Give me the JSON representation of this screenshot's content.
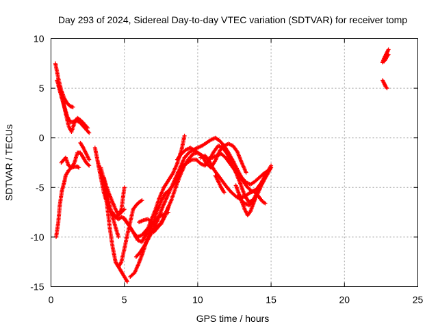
{
  "chart_data": {
    "type": "scatter",
    "title": "Day 293 of 2024, Sidereal Day-to-day VTEC variation (SDTVAR) for receiver tomp",
    "xlabel": "GPS time / hours",
    "ylabel": "SDTVAR / TECUs",
    "xlim": [
      0,
      25
    ],
    "ylim": [
      -15,
      10
    ],
    "xticks": [
      "0",
      "5",
      "10",
      "15",
      "20",
      "25"
    ],
    "yticks": [
      "10",
      "5",
      "0",
      "-5",
      "-10",
      "-15"
    ],
    "grid": true,
    "marker": "+",
    "color": "#ff0000",
    "series": [
      {
        "x": [
          0.3,
          0.5,
          0.7,
          0.9,
          1.1,
          1.3,
          1.5
        ],
        "y": [
          7.5,
          6.0,
          4.8,
          4.0,
          3.5,
          3.2,
          3.1
        ]
      },
      {
        "x": [
          0.4,
          0.6,
          0.8,
          1.0,
          1.2,
          1.4,
          1.6,
          1.8,
          2.0,
          2.2,
          2.5
        ],
        "y": [
          5.8,
          5.0,
          3.8,
          2.5,
          1.2,
          0.6,
          1.5,
          2.0,
          1.8,
          1.5,
          1.0
        ]
      },
      {
        "x": [
          0.5,
          0.7,
          0.9,
          1.1,
          1.3,
          1.5,
          1.7,
          2.0,
          2.3,
          2.6
        ],
        "y": [
          5.3,
          4.2,
          3.2,
          2.2,
          1.6,
          1.6,
          1.8,
          1.5,
          1.0,
          0.5
        ]
      },
      {
        "x": [
          2.0,
          2.2,
          2.4,
          2.6
        ],
        "y": [
          -0.5,
          -1.0,
          -1.6,
          -2.2
        ]
      },
      {
        "x": [
          0.7,
          1.0,
          1.2,
          1.4,
          1.6,
          1.8,
          2.0,
          2.2,
          2.4,
          2.6
        ],
        "y": [
          -2.5,
          -2.0,
          -2.8,
          -3.0,
          -2.5,
          -1.5,
          -1.5,
          -2.0,
          -2.5,
          -2.8
        ]
      },
      {
        "x": [
          0.35,
          0.5,
          0.6,
          0.75,
          0.9,
          1.0,
          1.2,
          1.4,
          1.6,
          1.8,
          1.9
        ],
        "y": [
          -10.0,
          -8.5,
          -6.8,
          -5.3,
          -4.5,
          -3.8,
          -3.3,
          -3.0,
          -2.9,
          -2.9,
          -3.0
        ]
      },
      {
        "x": [
          3.0,
          3.2,
          3.4,
          3.6,
          3.8,
          4.0,
          4.2,
          4.4,
          4.6,
          4.8,
          5.0
        ],
        "y": [
          -1.0,
          -2.5,
          -4.0,
          -5.5,
          -6.5,
          -7.2,
          -7.8,
          -8.0,
          -7.8,
          -7.5,
          -7.2
        ]
      },
      {
        "x": [
          3.2,
          3.4,
          3.6,
          3.8,
          4.0,
          4.2,
          4.4,
          4.6,
          4.8,
          5.0,
          5.2,
          5.4,
          5.6,
          5.8,
          6.0,
          6.2
        ],
        "y": [
          -2.5,
          -3.5,
          -4.6,
          -6.5,
          -9.0,
          -11.0,
          -12.5,
          -13.0,
          -12.5,
          -11.2,
          -9.8,
          -8.5,
          -7.2,
          -6.8,
          -6.5,
          -6.3
        ]
      },
      {
        "x": [
          3.6,
          3.8,
          4.0,
          4.2,
          4.4,
          4.6,
          4.8,
          5.0
        ],
        "y": [
          -4.0,
          -5.0,
          -5.8,
          -6.5,
          -7.2,
          -7.8,
          -7.2,
          -5.0
        ]
      },
      {
        "x": [
          3.4,
          3.6,
          3.8,
          4.0,
          4.2,
          4.4,
          4.6
        ],
        "y": [
          -3.0,
          -4.2,
          -5.5,
          -6.8,
          -8.0,
          -9.0,
          -10.0
        ]
      },
      {
        "x": [
          4.2,
          4.4,
          4.6,
          4.8,
          5.0,
          5.3,
          5.6,
          5.9,
          6.2,
          6.5,
          6.8,
          7.1,
          7.4,
          7.7,
          8.0
        ],
        "y": [
          -7.5,
          -8.0,
          -8.2,
          -8.0,
          -8.1,
          -8.8,
          -9.5,
          -10.0,
          -9.8,
          -9.3,
          -8.8,
          -8.3,
          -7.9,
          -7.7,
          -7.5
        ]
      },
      {
        "x": [
          4.4,
          4.6,
          4.8,
          5.0,
          5.2
        ],
        "y": [
          -12.5,
          -13.0,
          -13.5,
          -14.0,
          -14.5
        ]
      },
      {
        "x": [
          5.0,
          5.3,
          5.6,
          5.9,
          6.2,
          6.5,
          6.8,
          7.1,
          7.4,
          7.7,
          8.0,
          8.3,
          8.6,
          8.9,
          9.1
        ],
        "y": [
          -8.2,
          -8.8,
          -9.5,
          -10.3,
          -10.5,
          -9.6,
          -8.4,
          -7.3,
          -6.0,
          -5.0,
          -4.3,
          -3.6,
          -2.6,
          -1.2,
          0.2
        ]
      },
      {
        "x": [
          5.4,
          5.7,
          6.0,
          6.3,
          6.6,
          6.9,
          7.2,
          7.5,
          7.8,
          8.1,
          8.4,
          8.7,
          9.0
        ],
        "y": [
          -14.0,
          -13.6,
          -12.6,
          -11.4,
          -10.0,
          -8.8,
          -7.5,
          -6.4,
          -5.6,
          -5.2,
          -4.6,
          -3.6,
          -2.8
        ]
      },
      {
        "x": [
          5.8,
          6.1,
          6.4,
          6.7,
          7.0,
          7.3,
          7.6,
          7.9,
          8.2,
          8.5,
          8.8,
          9.1,
          9.4,
          9.7,
          10.0,
          10.3,
          10.6,
          10.9,
          11.2,
          11.5,
          11.8,
          12.1,
          12.4,
          12.7,
          13.0,
          13.3,
          13.6,
          13.9,
          14.2,
          14.5,
          14.8,
          15.0
        ],
        "y": [
          -12.0,
          -11.5,
          -10.8,
          -10.0,
          -9.2,
          -8.2,
          -7.0,
          -6.0,
          -5.0,
          -4.0,
          -3.0,
          -2.0,
          -1.5,
          -1.2,
          -1.0,
          -0.8,
          -0.5,
          -0.2,
          0.0,
          -0.3,
          -0.8,
          -1.5,
          -2.3,
          -3.2,
          -4.0,
          -4.5,
          -4.7,
          -4.4,
          -4.0,
          -3.6,
          -3.3,
          -3.0
        ]
      },
      {
        "x": [
          6.0,
          6.3,
          6.6,
          6.9,
          7.2,
          7.5,
          7.8,
          8.0
        ],
        "y": [
          -8.5,
          -8.3,
          -8.2,
          -8.5,
          -9.0,
          -8.7,
          -7.8,
          -7.0
        ]
      },
      {
        "x": [
          7.0,
          7.3,
          7.6,
          7.9,
          8.2,
          8.5,
          8.8,
          9.1,
          9.4,
          9.7,
          10.0,
          10.3,
          10.6,
          10.9,
          11.2,
          11.5,
          11.8,
          12.1,
          12.4,
          12.7,
          13.0,
          13.3
        ],
        "y": [
          -9.5,
          -9.0,
          -8.3,
          -7.3,
          -6.3,
          -5.0,
          -3.8,
          -2.8,
          -2.1,
          -1.6,
          -1.5,
          -1.8,
          -2.6,
          -3.0,
          -2.3,
          -1.3,
          -0.8,
          -0.6,
          -0.8,
          -1.4,
          -2.5,
          -3.5
        ]
      },
      {
        "x": [
          8.6,
          8.9,
          9.2,
          9.5,
          9.8,
          10.1,
          10.4,
          10.7,
          11.0,
          11.3,
          11.6,
          11.9,
          12.2,
          12.5,
          12.8,
          13.1,
          13.4,
          13.7,
          14.0,
          14.3,
          14.6,
          14.9
        ],
        "y": [
          -2.2,
          -1.6,
          -1.2,
          -1.0,
          -1.3,
          -1.6,
          -1.9,
          -2.1,
          -2.0,
          -1.8,
          -1.6,
          -2.0,
          -2.6,
          -3.2,
          -3.8,
          -4.4,
          -5.0,
          -5.4,
          -5.2,
          -4.6,
          -3.8,
          -3.2
        ]
      },
      {
        "x": [
          9.0,
          9.3,
          9.6,
          9.9,
          10.2,
          10.5,
          10.8,
          11.1,
          11.4,
          11.7,
          12.0,
          12.3,
          12.6,
          12.9,
          13.2,
          13.5,
          13.8,
          14.1,
          14.4,
          14.7,
          15.0
        ],
        "y": [
          -2.8,
          -2.5,
          -2.2,
          -2.2,
          -2.6,
          -2.8,
          -2.2,
          -1.4,
          -0.8,
          -1.0,
          -1.6,
          -2.5,
          -3.5,
          -4.6,
          -5.8,
          -6.5,
          -6.2,
          -5.4,
          -4.6,
          -3.8,
          -3.0
        ]
      },
      {
        "x": [
          10.2,
          10.5,
          10.8,
          11.1,
          11.4,
          11.7,
          12.0,
          12.3,
          12.6,
          12.9,
          13.2,
          13.5,
          13.8,
          14.1,
          14.4,
          14.7,
          15.0
        ],
        "y": [
          -2.0,
          -1.8,
          -2.4,
          -3.2,
          -3.8,
          -4.4,
          -5.0,
          -5.5,
          -5.9,
          -6.2,
          -6.6,
          -6.8,
          -6.4,
          -5.6,
          -4.6,
          -3.6,
          -2.8
        ]
      },
      {
        "x": [
          11.2,
          11.4,
          11.6,
          11.8
        ],
        "y": [
          -3.8,
          -4.4,
          -5.0,
          -5.5
        ]
      },
      {
        "x": [
          12.6,
          12.8,
          13.0,
          13.2,
          13.4,
          13.6,
          13.8,
          14.0
        ],
        "y": [
          -4.8,
          -5.6,
          -6.4,
          -7.2,
          -7.8,
          -7.4,
          -6.6,
          -5.8
        ]
      },
      {
        "x": [
          12.8,
          13.0,
          13.2,
          13.4,
          13.6,
          13.8,
          14.0,
          14.2,
          14.4,
          14.6
        ],
        "y": [
          -5.8,
          -6.0,
          -5.9,
          -5.7,
          -5.5,
          -5.4,
          -5.6,
          -6.0,
          -6.4,
          -6.6
        ]
      },
      {
        "x": [
          22.6,
          22.7,
          22.8,
          22.9,
          23.0
        ],
        "y": [
          7.6,
          8.0,
          8.3,
          8.6,
          8.9
        ]
      },
      {
        "x": [
          22.7,
          22.8,
          22.9,
          23.0
        ],
        "y": [
          7.7,
          7.9,
          8.2,
          8.4
        ]
      },
      {
        "x": [
          22.6,
          22.7,
          22.8,
          22.9
        ],
        "y": [
          5.8,
          5.5,
          5.2,
          5.0
        ]
      }
    ]
  }
}
